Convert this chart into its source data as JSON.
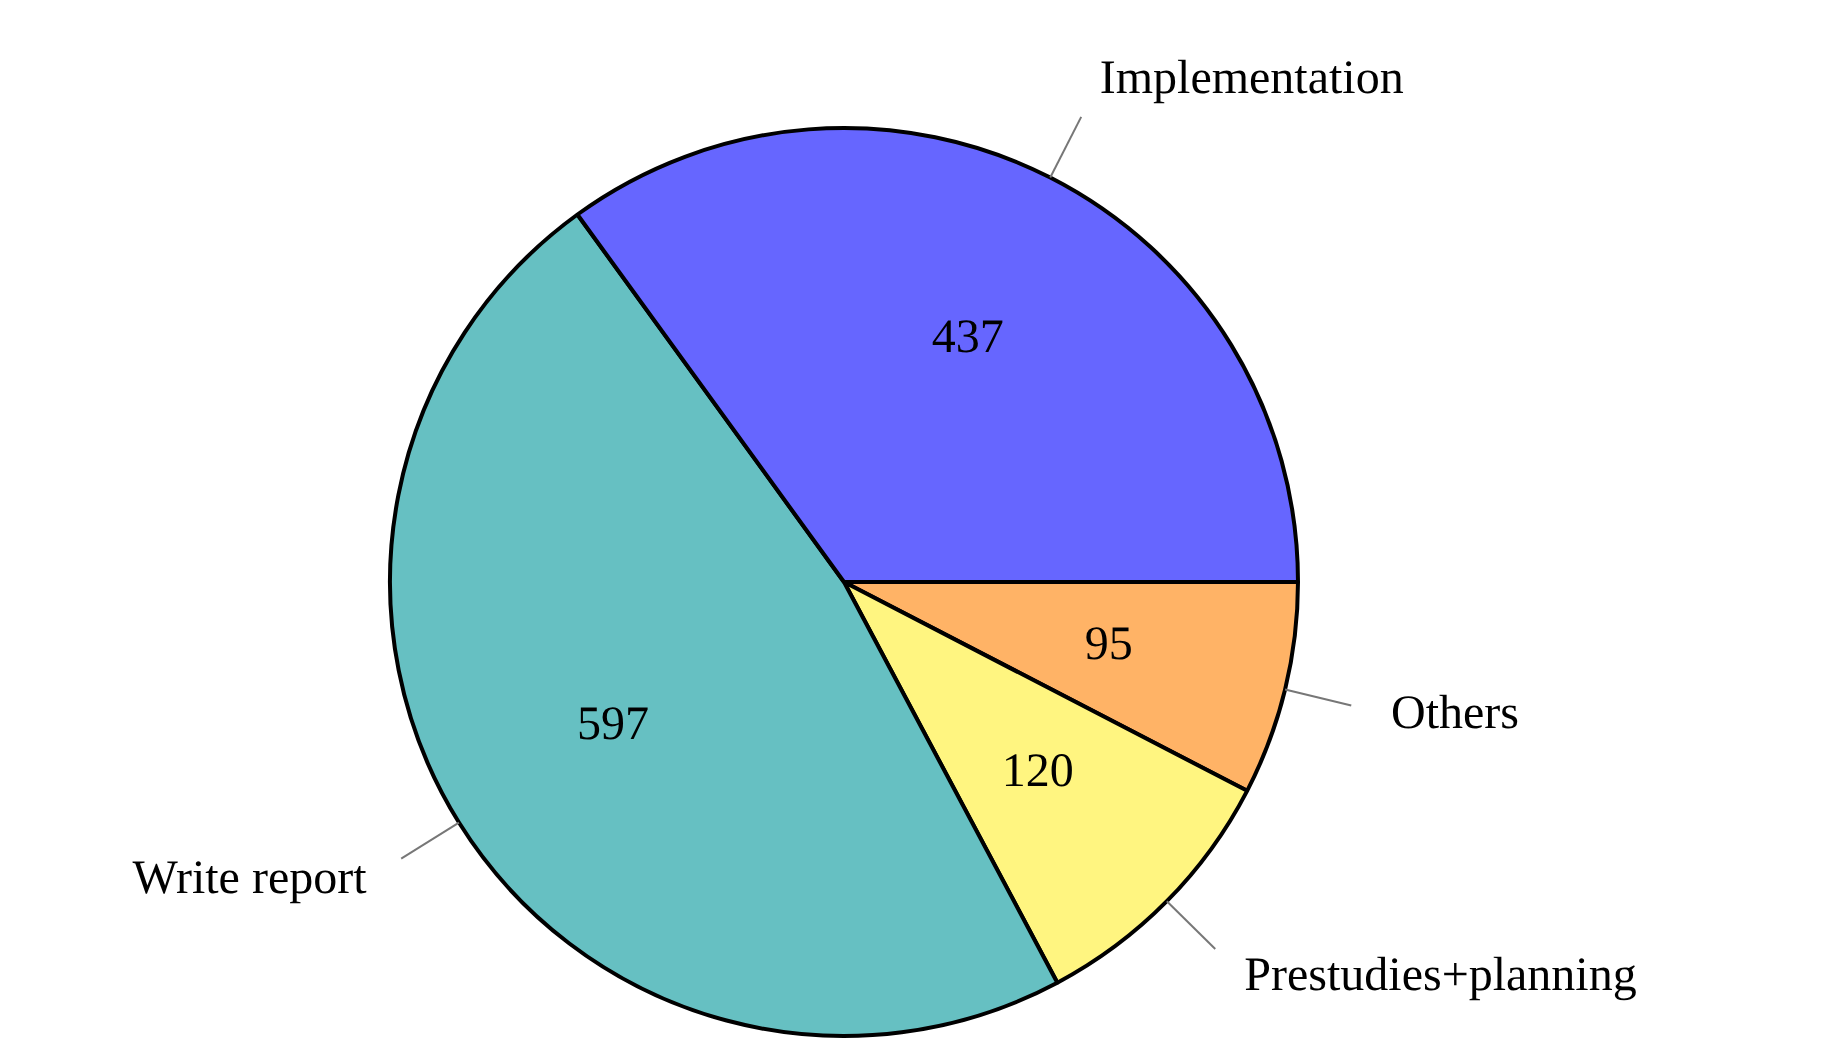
{
  "chart_data": {
    "type": "pie",
    "categories": [
      "Others",
      "Prestudies+planning",
      "Write report",
      "Implementation"
    ],
    "values": [
      95,
      120,
      597,
      437
    ],
    "colors": [
      "#ffb366",
      "#fff580",
      "#66c0c2",
      "#6666ff"
    ],
    "data_labels": true,
    "legend": false
  }
}
